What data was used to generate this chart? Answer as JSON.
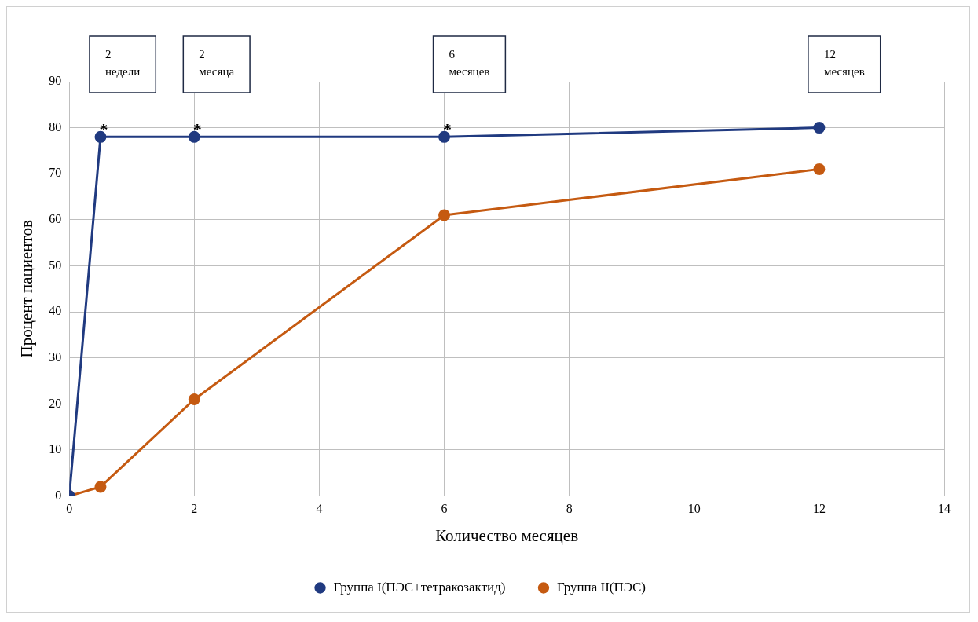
{
  "chart_data": {
    "type": "line",
    "xlabel": "Количество месяцев",
    "ylabel": "Процент пациентов",
    "xlim": [
      0,
      14
    ],
    "xticks": [
      0,
      2,
      4,
      6,
      8,
      10,
      12,
      14
    ],
    "ylim": [
      0,
      90
    ],
    "yticks": [
      0,
      10,
      20,
      30,
      40,
      50,
      60,
      70,
      80,
      90
    ],
    "grid": true,
    "legend": "bottom",
    "marker": "circle",
    "line_style": "solid",
    "series": [
      {
        "name": "Группа I(ПЭС+тетракозактид)",
        "color": "#203a80",
        "x": [
          0,
          0.5,
          2,
          6,
          12
        ],
        "values": [
          0,
          78,
          78,
          78,
          80
        ]
      },
      {
        "name": "Группа II(ПЭС)",
        "color": "#c55a11",
        "x": [
          0,
          0.5,
          2,
          6,
          12
        ],
        "values": [
          0,
          2,
          21,
          61,
          71
        ]
      }
    ],
    "annotations": [
      "2 недели",
      "2 месяца",
      "6 месяцев",
      "12 месяцев",
      {
        "text": "*",
        "x": 0.5,
        "y": 78
      },
      {
        "text": "*",
        "x": 2,
        "y": 78
      },
      {
        "text": "*",
        "x": 6,
        "y": 78
      }
    ]
  }
}
